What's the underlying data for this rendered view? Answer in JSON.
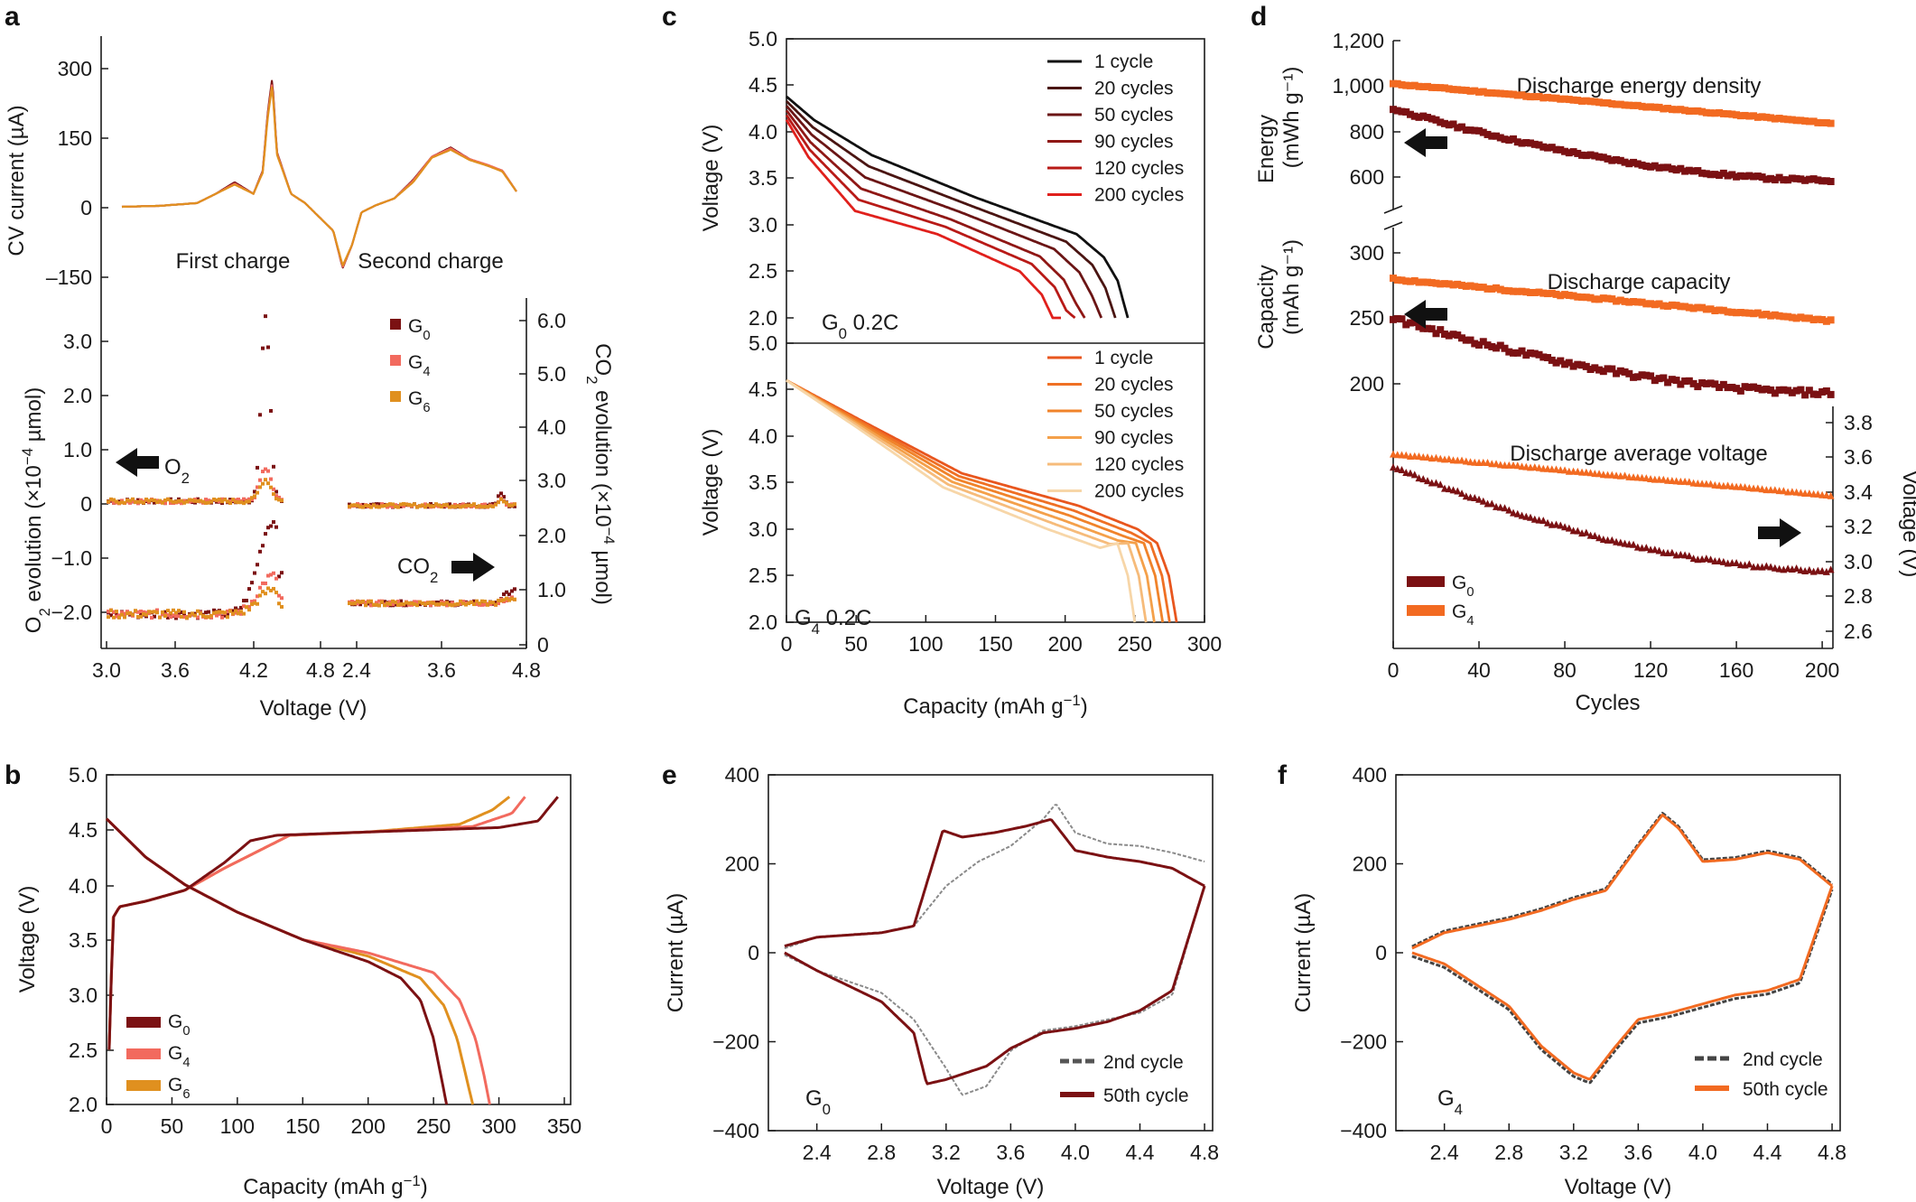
{
  "panel_labels": {
    "a": "a",
    "b": "b",
    "c": "c",
    "d": "d",
    "e": "e",
    "f": "f"
  },
  "colors": {
    "G0": "#7b1113",
    "G4": "#f26a5e",
    "G6": "#e0901f",
    "orange": "#f26a21"
  },
  "chart_data": [
    {
      "panel": "a-top",
      "type": "line",
      "ylabel": "CV current (µA)",
      "yticks": [
        "300",
        "150",
        "0",
        "–150"
      ],
      "ylim": [
        -200,
        340
      ],
      "annotations": [
        "First charge",
        "Second charge"
      ],
      "series": [
        {
          "name": "G0",
          "x": [
            3.0,
            3.4,
            3.8,
            4.0,
            4.2,
            4.4,
            4.5,
            4.55,
            4.6,
            4.65,
            4.8,
            4.95,
            5.1,
            5.25,
            5.35,
            5.45,
            5.55,
            5.7,
            5.9,
            6.1,
            6.3,
            6.5,
            6.7,
            6.9,
            7.05,
            7.2
          ],
          "y": [
            2,
            4,
            10,
            30,
            55,
            30,
            80,
            200,
            280,
            120,
            30,
            10,
            -20,
            -50,
            -130,
            -80,
            -10,
            5,
            20,
            60,
            110,
            130,
            105,
            90,
            80,
            35
          ]
        },
        {
          "name": "G4",
          "x": [
            3.0,
            3.4,
            3.8,
            4.0,
            4.2,
            4.4,
            4.5,
            4.55,
            4.6,
            4.65,
            4.8,
            4.95,
            5.1,
            5.25,
            5.35,
            5.45,
            5.55,
            5.7,
            5.9,
            6.1,
            6.3,
            6.5,
            6.7,
            6.9,
            7.05,
            7.2
          ],
          "y": [
            2,
            4,
            10,
            30,
            52,
            30,
            78,
            195,
            270,
            118,
            30,
            10,
            -20,
            -50,
            -128,
            -80,
            -10,
            5,
            20,
            58,
            110,
            128,
            105,
            92,
            80,
            35
          ]
        },
        {
          "name": "G6",
          "x": [
            3.0,
            3.4,
            3.8,
            4.0,
            4.2,
            4.4,
            4.5,
            4.55,
            4.6,
            4.65,
            4.8,
            4.95,
            5.1,
            5.25,
            5.35,
            5.45,
            5.55,
            5.7,
            5.9,
            6.1,
            6.3,
            6.5,
            6.7,
            6.9,
            7.05,
            7.2
          ],
          "y": [
            2,
            4,
            10,
            30,
            50,
            30,
            76,
            190,
            265,
            115,
            30,
            10,
            -20,
            -50,
            -125,
            -80,
            -10,
            5,
            20,
            55,
            108,
            125,
            103,
            90,
            78,
            35
          ]
        }
      ]
    },
    {
      "panel": "a-bottom",
      "type": "scatter",
      "ylabel": "O2 evolution (×10⁻⁴ µmol)",
      "ylabel_parts": {
        "pre": "O",
        "sub": "2",
        "mid": " evolution (×10",
        "sup": "−4",
        "post": " µmol)"
      },
      "y2label_parts": {
        "pre": "CO",
        "sub": "2",
        "mid": " evolution (×10",
        "sup": "−4",
        "post": " µmol)"
      },
      "xlabel": "Voltage (V)",
      "xticks": [
        "3.0",
        "3.6",
        "4.2",
        "4.8",
        "2.4",
        "3.6",
        "4.8"
      ],
      "yticks": [
        "3.0",
        "2.0",
        "1.0",
        "0",
        "−1.0",
        "−2.0"
      ],
      "y2ticks": [
        "6.0",
        "5.0",
        "4.0",
        "3.0",
        "2.0",
        "1.0",
        "0"
      ],
      "legend": [
        {
          "label": "G",
          "sub": "0"
        },
        {
          "label": "G",
          "sub": "4"
        },
        {
          "label": "G",
          "sub": "6"
        }
      ],
      "annotations": [
        {
          "label": "O",
          "sub": "2"
        },
        {
          "label": "CO",
          "sub": "2"
        }
      ],
      "o2_peak": {
        "G0": 3.4,
        "G4": 0.6,
        "G6": 0.4
      },
      "co2_peak": {
        "G0": 1.7,
        "G4": 0.7,
        "G6": 0.45
      }
    },
    {
      "panel": "b",
      "type": "line",
      "xlabel": "Capacity (mAh g⁻¹)",
      "ylabel": "Voltage (V)",
      "xticks": [
        "0",
        "50",
        "100",
        "150",
        "200",
        "250",
        "300",
        "350"
      ],
      "yticks": [
        "5.0",
        "4.5",
        "4.0",
        "3.5",
        "3.0",
        "2.5",
        "2.0"
      ],
      "xlim": [
        0,
        350
      ],
      "ylim": [
        1.9,
        5.0
      ],
      "legend": [
        {
          "label": "G",
          "sub": "0"
        },
        {
          "label": "G",
          "sub": "4"
        },
        {
          "label": "G",
          "sub": "6"
        }
      ],
      "charge": [
        {
          "name": "G0",
          "x": [
            2,
            5,
            10,
            30,
            60,
            90,
            110,
            130,
            200,
            300,
            330,
            345
          ],
          "y": [
            2.5,
            3.7,
            3.8,
            3.85,
            3.95,
            4.2,
            4.4,
            4.45,
            4.48,
            4.52,
            4.58,
            4.8
          ]
        },
        {
          "name": "G4",
          "x": [
            2,
            5,
            10,
            30,
            60,
            90,
            115,
            140,
            200,
            280,
            310,
            320
          ],
          "y": [
            2.5,
            3.7,
            3.8,
            3.85,
            3.95,
            4.15,
            4.3,
            4.45,
            4.48,
            4.53,
            4.65,
            4.8
          ]
        },
        {
          "name": "G6",
          "x": [
            2,
            5,
            10,
            30,
            60,
            90,
            115,
            140,
            200,
            270,
            295,
            308
          ],
          "y": [
            2.5,
            3.7,
            3.8,
            3.85,
            3.95,
            4.15,
            4.3,
            4.45,
            4.48,
            4.55,
            4.68,
            4.8
          ]
        }
      ],
      "discharge": [
        {
          "name": "G0",
          "x": [
            0,
            30,
            60,
            100,
            150,
            200,
            225,
            240,
            250,
            255,
            260
          ],
          "y": [
            4.6,
            4.25,
            4.0,
            3.75,
            3.5,
            3.3,
            3.15,
            2.95,
            2.6,
            2.3,
            2.0
          ]
        },
        {
          "name": "G4",
          "x": [
            0,
            30,
            60,
            100,
            150,
            200,
            250,
            270,
            282,
            288,
            293
          ],
          "y": [
            4.6,
            4.25,
            4.0,
            3.75,
            3.5,
            3.38,
            3.2,
            2.95,
            2.6,
            2.3,
            2.0
          ]
        },
        {
          "name": "G6",
          "x": [
            0,
            30,
            60,
            100,
            150,
            200,
            240,
            258,
            268,
            274,
            280
          ],
          "y": [
            4.6,
            4.25,
            4.0,
            3.75,
            3.5,
            3.35,
            3.15,
            2.9,
            2.6,
            2.3,
            2.0
          ]
        }
      ]
    },
    {
      "panel": "c",
      "type": "line",
      "xlabel": "Capacity (mAh g⁻¹)",
      "ylabel_top": "Voltage (V)",
      "ylabel_bottom": "Voltage (V)",
      "xticks": [
        "0",
        "50",
        "100",
        "150",
        "200",
        "250",
        "300"
      ],
      "yticks_top": [
        "5.0",
        "4.5",
        "4.0",
        "3.5",
        "3.0",
        "2.5",
        "2.0"
      ],
      "yticks_bottom": [
        "5.0",
        "4.5",
        "4.0",
        "3.5",
        "3.0",
        "2.5",
        "2.0"
      ],
      "label_top": {
        "pre": "G",
        "sub": "0",
        "post": " 0.2C"
      },
      "label_bottom": {
        "pre": "G",
        "sub": "4",
        "post": " 0.2C"
      },
      "legend_top": [
        "1 cycle",
        "20 cycles",
        "50 cycles",
        "90 cycles",
        "120 cycles",
        "200 cycles"
      ],
      "legend_bottom": [
        "1 cycle",
        "20 cycles",
        "50 cycles",
        "90 cycles",
        "120 cycles",
        "200 cycles"
      ],
      "colors_top": [
        "#111111",
        "#4a1512",
        "#6b1515",
        "#8f1715",
        "#b81a17",
        "#e0201c"
      ],
      "colors_bottom": [
        "#e8561e",
        "#ef7024",
        "#f0832a",
        "#f4a04a",
        "#f6bb7a",
        "#f7d6a8"
      ],
      "g0_end_capacity": [
        245,
        236,
        226,
        214,
        207,
        197
      ],
      "g4_end_capacity": [
        280,
        275,
        270,
        264,
        258,
        250
      ]
    },
    {
      "panel": "d",
      "type": "scatter",
      "xlabel": "Cycles",
      "xticks": [
        "0",
        "40",
        "80",
        "120",
        "160",
        "200"
      ],
      "energy_ylabel_lines": [
        "Energy",
        "(mWh g⁻¹)"
      ],
      "energy_yticks": [
        "1,200",
        "1,000",
        "800",
        "600"
      ],
      "capacity_ylabel_lines": [
        "Capacity",
        "(mAh g⁻¹)"
      ],
      "capacity_yticks": [
        "300",
        "250",
        "200"
      ],
      "voltage_ylabel": "Voltage (V)",
      "voltage_yticks": [
        "3.8",
        "3.6",
        "3.4",
        "3.2",
        "3.0",
        "2.8",
        "2.6"
      ],
      "titles": [
        "Discharge energy density",
        "Discharge capacity",
        "Discharge average voltage"
      ],
      "legend": [
        {
          "label": "G",
          "sub": "0"
        },
        {
          "label": "G",
          "sub": "4"
        }
      ],
      "series": [
        {
          "name": "G4 energy",
          "start": 1010,
          "end": 835
        },
        {
          "name": "G0 energy",
          "start": 900,
          "end": 585
        },
        {
          "name": "G4 capacity",
          "start": 280,
          "end": 248
        },
        {
          "name": "G0 capacity",
          "start": 250,
          "end": 193
        },
        {
          "name": "G4 voltage",
          "start": 3.62,
          "end": 3.38
        },
        {
          "name": "G0 voltage",
          "start": 3.55,
          "end": 2.95
        }
      ]
    },
    {
      "panel": "e",
      "type": "line",
      "xlabel": "Voltage (V)",
      "ylabel": "Current (µA)",
      "xticks": [
        "2.4",
        "2.8",
        "3.2",
        "3.6",
        "4.0",
        "4.4",
        "4.8"
      ],
      "yticks": [
        "400",
        "200",
        "0",
        "−200",
        "−400"
      ],
      "xlim": [
        2.1,
        4.85
      ],
      "ylim": [
        -400,
        400
      ],
      "legend": [
        "2nd cycle",
        "50th cycle"
      ],
      "label": {
        "pre": "G",
        "sub": "0"
      }
    },
    {
      "panel": "f",
      "type": "line",
      "xlabel": "Voltage (V)",
      "ylabel": "Current (µA)",
      "xticks": [
        "2.4",
        "2.8",
        "3.2",
        "3.6",
        "4.0",
        "4.4",
        "4.8"
      ],
      "yticks": [
        "400",
        "200",
        "0",
        "−200",
        "−400"
      ],
      "xlim": [
        2.1,
        4.85
      ],
      "ylim": [
        -400,
        400
      ],
      "legend": [
        "2nd cycle",
        "50th cycle"
      ],
      "label": {
        "pre": "G",
        "sub": "4"
      }
    }
  ]
}
